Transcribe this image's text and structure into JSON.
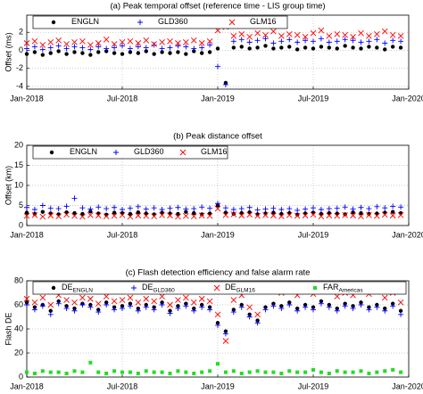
{
  "chart_data": [
    {
      "type": "scatter",
      "title": "(a) Peak temporal offset (reference time - LIS group time)",
      "ylabel": "Offset (ms)",
      "x": [
        0,
        0.5,
        1,
        1.5,
        2,
        2.5,
        3,
        3.5,
        4,
        4.5,
        5,
        5.5,
        6,
        6.5,
        7,
        7.5,
        8,
        8.5,
        9,
        9.5,
        10,
        10.5,
        11,
        11.5,
        12,
        12.5,
        13,
        13.5,
        14,
        14.5,
        15,
        15.5,
        16,
        16.5,
        17,
        17.5,
        18,
        18.5,
        19,
        19.5,
        20,
        20.5,
        21,
        21.5,
        22,
        22.5,
        23,
        23.5
      ],
      "xlim": [
        0,
        24
      ],
      "xticks": [
        {
          "value": 0,
          "label": "Jan-2018"
        },
        {
          "value": 6,
          "label": "Jul-2018"
        },
        {
          "value": 12,
          "label": "Jan-2019"
        },
        {
          "value": 18,
          "label": "Jul-2019"
        },
        {
          "value": 24,
          "label": "Jan-2020"
        }
      ],
      "ylim": [
        -4.3,
        3.9
      ],
      "yticks": [
        -4,
        -2,
        0,
        2
      ],
      "grid": true,
      "legend": "upper left",
      "series": [
        {
          "name": "ENGLN",
          "color": "#000000",
          "marker": "o",
          "values": [
            -0.4,
            -0.2,
            -0.5,
            -0.3,
            -0.1,
            -0.4,
            -0.2,
            -0.3,
            -0.5,
            -0.2,
            -0.1,
            -0.3,
            -0.4,
            -0.2,
            -0.3,
            -0.1,
            -0.4,
            -0.2,
            -0.3,
            -0.2,
            -0.4,
            -0.1,
            -0.3,
            -0.2,
            0.2,
            -3.6,
            0.3,
            0.4,
            0.2,
            0.3,
            0.5,
            0.2,
            0.3,
            0.4,
            0.1,
            0.3,
            0.2,
            0.4,
            0.3,
            0.2,
            0.5,
            0.3,
            0.2,
            0.4,
            0.3,
            0.1,
            0.4,
            0.3
          ]
        },
        {
          "name": "GLD360",
          "color": "#0000ff",
          "marker": "+",
          "values": [
            0.2,
            0.4,
            0.1,
            0.3,
            0.5,
            0.2,
            0.4,
            0.3,
            0.1,
            0.4,
            0.2,
            0.3,
            0.5,
            0.2,
            0.4,
            0.3,
            0.6,
            0.2,
            0.3,
            0.5,
            0.4,
            0.2,
            0.3,
            0.6,
            -1.8,
            -3.8,
            1.0,
            1.2,
            0.9,
            1.1,
            1.3,
            0.8,
            1.0,
            1.2,
            0.9,
            1.1,
            1.0,
            1.3,
            0.9,
            1.0,
            1.2,
            1.1,
            0.9,
            1.0,
            1.2,
            0.8,
            1.1,
            1.0
          ]
        },
        {
          "name": "GLM16",
          "color": "#ff0000",
          "marker": "x",
          "values": [
            0.8,
            1.0,
            0.6,
            0.9,
            1.1,
            0.7,
            0.9,
            1.0,
            0.6,
            0.8,
            1.2,
            0.7,
            0.9,
            1.0,
            0.8,
            1.1,
            0.7,
            0.9,
            1.0,
            0.8,
            0.9,
            1.1,
            0.8,
            1.0,
            2.2,
            2.6,
            1.6,
            1.8,
            1.5,
            1.9,
            1.7,
            2.1,
            1.6,
            1.8,
            1.7,
            1.5,
            1.9,
            2.2,
            1.6,
            1.8,
            1.7,
            1.5,
            1.9,
            1.6,
            1.8,
            2.1,
            1.7,
            1.6
          ]
        }
      ]
    },
    {
      "type": "scatter",
      "title": "(b) Peak distance offset",
      "ylabel": "Offset (km)",
      "x": [
        0,
        0.5,
        1,
        1.5,
        2,
        2.5,
        3,
        3.5,
        4,
        4.5,
        5,
        5.5,
        6,
        6.5,
        7,
        7.5,
        8,
        8.5,
        9,
        9.5,
        10,
        10.5,
        11,
        11.5,
        12,
        12.5,
        13,
        13.5,
        14,
        14.5,
        15,
        15.5,
        16,
        16.5,
        17,
        17.5,
        18,
        18.5,
        19,
        19.5,
        20,
        20.5,
        21,
        21.5,
        22,
        22.5,
        23,
        23.5
      ],
      "xlim": [
        0,
        24
      ],
      "xticks": [
        {
          "value": 0,
          "label": "Jan-2018"
        },
        {
          "value": 6,
          "label": "Jul-2018"
        },
        {
          "value": 12,
          "label": "Jan-2019"
        },
        {
          "value": 18,
          "label": "Jul-2019"
        },
        {
          "value": 24,
          "label": "Jan-2020"
        }
      ],
      "ylim": [
        0,
        20
      ],
      "yticks": [
        0,
        5,
        10,
        15,
        20
      ],
      "grid": true,
      "legend": "upper left",
      "series": [
        {
          "name": "ENGLN",
          "color": "#000000",
          "marker": "o",
          "values": [
            3.2,
            2.9,
            3.4,
            3.0,
            2.8,
            3.3,
            3.1,
            2.9,
            3.5,
            3.0,
            2.7,
            3.2,
            3.1,
            2.9,
            3.3,
            3.0,
            2.8,
            3.2,
            3.0,
            2.9,
            3.4,
            3.1,
            2.8,
            3.0,
            5.0,
            3.2,
            2.9,
            3.1,
            3.3,
            2.8,
            3.0,
            3.2,
            2.9,
            3.1,
            2.7,
            3.0,
            3.2,
            2.9,
            3.1,
            3.0,
            2.8,
            3.3,
            3.1,
            2.9,
            3.0,
            3.2,
            3.4,
            3.1
          ]
        },
        {
          "name": "GLD360",
          "color": "#0000ff",
          "marker": "+",
          "values": [
            4.5,
            4.0,
            5.0,
            4.3,
            4.2,
            4.8,
            6.8,
            4.4,
            4.1,
            4.6,
            4.2,
            4.5,
            4.0,
            4.3,
            4.7,
            4.1,
            4.4,
            4.0,
            4.3,
            4.5,
            4.1,
            4.2,
            4.6,
            4.3,
            5.5,
            4.4,
            4.0,
            4.2,
            4.5,
            3.9,
            4.1,
            4.3,
            4.0,
            4.2,
            3.8,
            4.1,
            4.4,
            4.0,
            4.2,
            4.3,
            4.6,
            4.1,
            4.5,
            4.2,
            4.7,
            4.4,
            4.8,
            4.6
          ]
        },
        {
          "name": "GLM16",
          "color": "#ff0000",
          "marker": "x",
          "values": [
            2.4,
            2.6,
            2.2,
            2.5,
            2.3,
            2.7,
            2.4,
            2.2,
            2.6,
            2.5,
            2.3,
            2.4,
            2.6,
            2.2,
            2.5,
            2.4,
            2.3,
            2.6,
            2.5,
            2.2,
            2.4,
            2.3,
            2.5,
            2.4,
            4.2,
            2.6,
            2.8,
            2.5,
            2.7,
            2.4,
            2.6,
            2.5,
            2.3,
            2.6,
            2.4,
            2.5,
            2.7,
            2.3,
            2.5,
            2.4,
            2.6,
            2.5,
            2.3,
            2.6,
            2.4,
            2.7,
            2.5,
            2.6
          ]
        }
      ]
    },
    {
      "type": "scatter",
      "title": "(c) Flash detection efficiency and false alarm rate",
      "ylabel": "Flash DE",
      "x": [
        0,
        0.5,
        1,
        1.5,
        2,
        2.5,
        3,
        3.5,
        4,
        4.5,
        5,
        5.5,
        6,
        6.5,
        7,
        7.5,
        8,
        8.5,
        9,
        9.5,
        10,
        10.5,
        11,
        11.5,
        12,
        12.5,
        13,
        13.5,
        14,
        14.5,
        15,
        15.5,
        16,
        16.5,
        17,
        17.5,
        18,
        18.5,
        19,
        19.5,
        20,
        20.5,
        21,
        21.5,
        22,
        22.5,
        23,
        23.5
      ],
      "xlim": [
        0,
        24
      ],
      "xticks": [
        {
          "value": 0,
          "label": "Jan-2018"
        },
        {
          "value": 6,
          "label": "Jul-2018"
        },
        {
          "value": 12,
          "label": "Jan-2019"
        },
        {
          "value": 18,
          "label": "Jul-2019"
        },
        {
          "value": 24,
          "label": "Jan-2020"
        }
      ],
      "ylim": [
        0,
        80
      ],
      "yticks": [
        0,
        20,
        40,
        60,
        80
      ],
      "grid": true,
      "legend": "upper left",
      "series": [
        {
          "name": "DE",
          "subscript": "ENGLN",
          "color": "#000000",
          "marker": "o",
          "values": [
            62,
            58,
            60,
            55,
            63,
            59,
            57,
            61,
            60,
            56,
            62,
            58,
            59,
            61,
            57,
            60,
            58,
            62,
            55,
            59,
            61,
            57,
            60,
            58,
            45,
            38,
            56,
            60,
            52,
            47,
            58,
            61,
            59,
            62,
            57,
            60,
            58,
            63,
            60,
            57,
            61,
            59,
            62,
            58,
            60,
            57,
            61,
            55
          ]
        },
        {
          "name": "DE",
          "subscript": "GLD360",
          "color": "#0000ff",
          "marker": "+",
          "values": [
            60,
            56,
            59,
            52,
            61,
            57,
            55,
            60,
            58,
            54,
            60,
            56,
            57,
            59,
            55,
            58,
            56,
            60,
            53,
            57,
            59,
            55,
            58,
            56,
            43,
            36,
            54,
            58,
            50,
            45,
            56,
            59,
            57,
            60,
            55,
            58,
            56,
            61,
            58,
            55,
            59,
            57,
            60,
            56,
            58,
            55,
            59,
            52
          ]
        },
        {
          "name": "DE",
          "subscript": "GLM16",
          "color": "#ff0000",
          "marker": "x",
          "values": [
            65,
            62,
            66,
            60,
            68,
            64,
            62,
            66,
            65,
            61,
            67,
            63,
            64,
            66,
            62,
            65,
            63,
            67,
            60,
            64,
            66,
            62,
            65,
            63,
            52,
            30,
            64,
            68,
            58,
            52,
            72,
            74,
            70,
            73,
            68,
            71,
            69,
            75,
            72,
            67,
            70,
            68,
            73,
            69,
            71,
            66,
            70,
            62
          ]
        },
        {
          "name": "FAR",
          "subscript": "Americas",
          "color": "#22dd22",
          "marker": "s",
          "values": [
            4,
            3,
            5,
            4,
            4,
            3,
            5,
            4,
            12,
            4,
            3,
            5,
            4,
            4,
            3,
            5,
            4,
            4,
            3,
            5,
            4,
            3,
            4,
            5,
            11,
            4,
            5,
            3,
            4,
            5,
            4,
            4,
            3,
            5,
            4,
            4,
            6,
            4,
            3,
            5,
            4,
            4,
            5,
            3,
            4,
            5,
            6,
            4
          ]
        }
      ]
    }
  ]
}
